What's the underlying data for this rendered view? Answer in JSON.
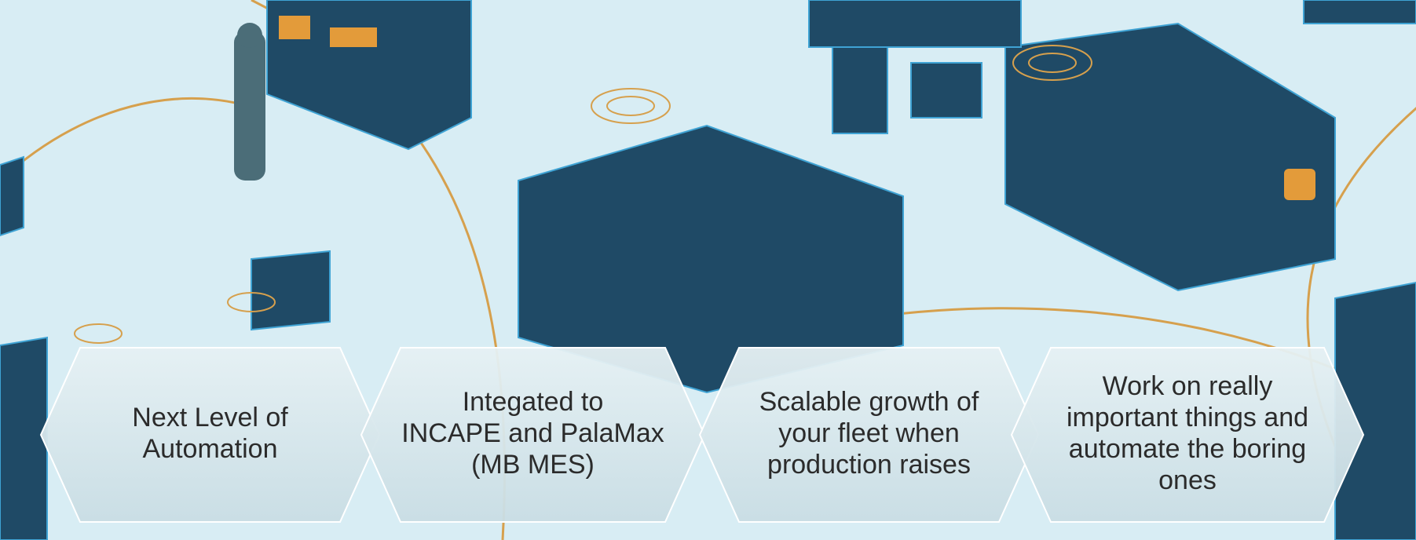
{
  "steps": [
    {
      "lines": [
        "Next Level of",
        "Automation"
      ]
    },
    {
      "lines": [
        "Integated to",
        "INCAPE and PalaMax",
        "(MB MES)"
      ]
    },
    {
      "lines": [
        "Scalable growth of",
        "your fleet when",
        "production raises"
      ]
    },
    {
      "lines": [
        "Work on really",
        "important things and",
        "automate the boring",
        "ones"
      ]
    }
  ]
}
